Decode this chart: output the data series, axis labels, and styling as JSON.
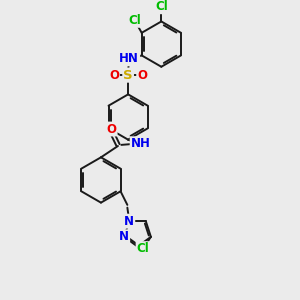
{
  "bg_color": "#ebebeb",
  "bond_color": "#1a1a1a",
  "bond_width": 1.4,
  "atom_colors": {
    "N": "#0000ee",
    "O": "#ee0000",
    "S": "#ccaa00",
    "Cl": "#00bb00",
    "NH": "#0000ee",
    "H": "#44aaaa"
  },
  "font_size": 8.5,
  "fig_size": [
    3.0,
    3.0
  ],
  "dpi": 100,
  "xlim": [
    0,
    10
  ],
  "ylim": [
    0,
    13
  ]
}
